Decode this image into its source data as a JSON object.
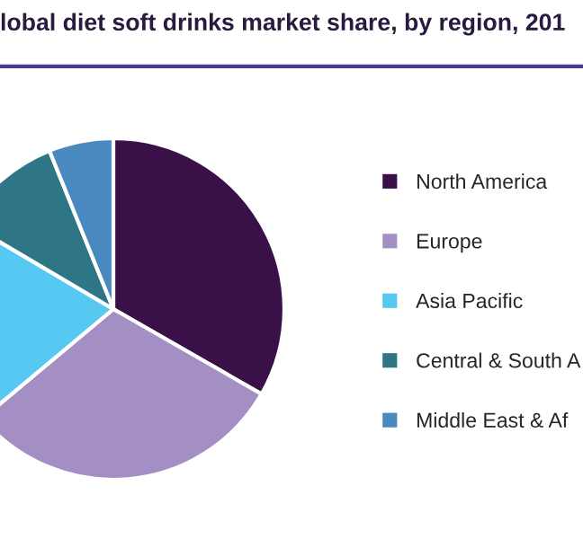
{
  "chart_data": {
    "type": "pie",
    "title": "lobal diet soft drinks market share, by region, 201",
    "categories": [
      "North America",
      "Europe",
      "Asia Pacific",
      "Central & South A",
      "Middle East & Af"
    ],
    "values": [
      33.3,
      30.6,
      19.6,
      10.4,
      6.1
    ],
    "colors": [
      "#3a1048",
      "#a38fc4",
      "#56c8f2",
      "#2e7585",
      "#4a89c0"
    ],
    "legend": "right"
  }
}
